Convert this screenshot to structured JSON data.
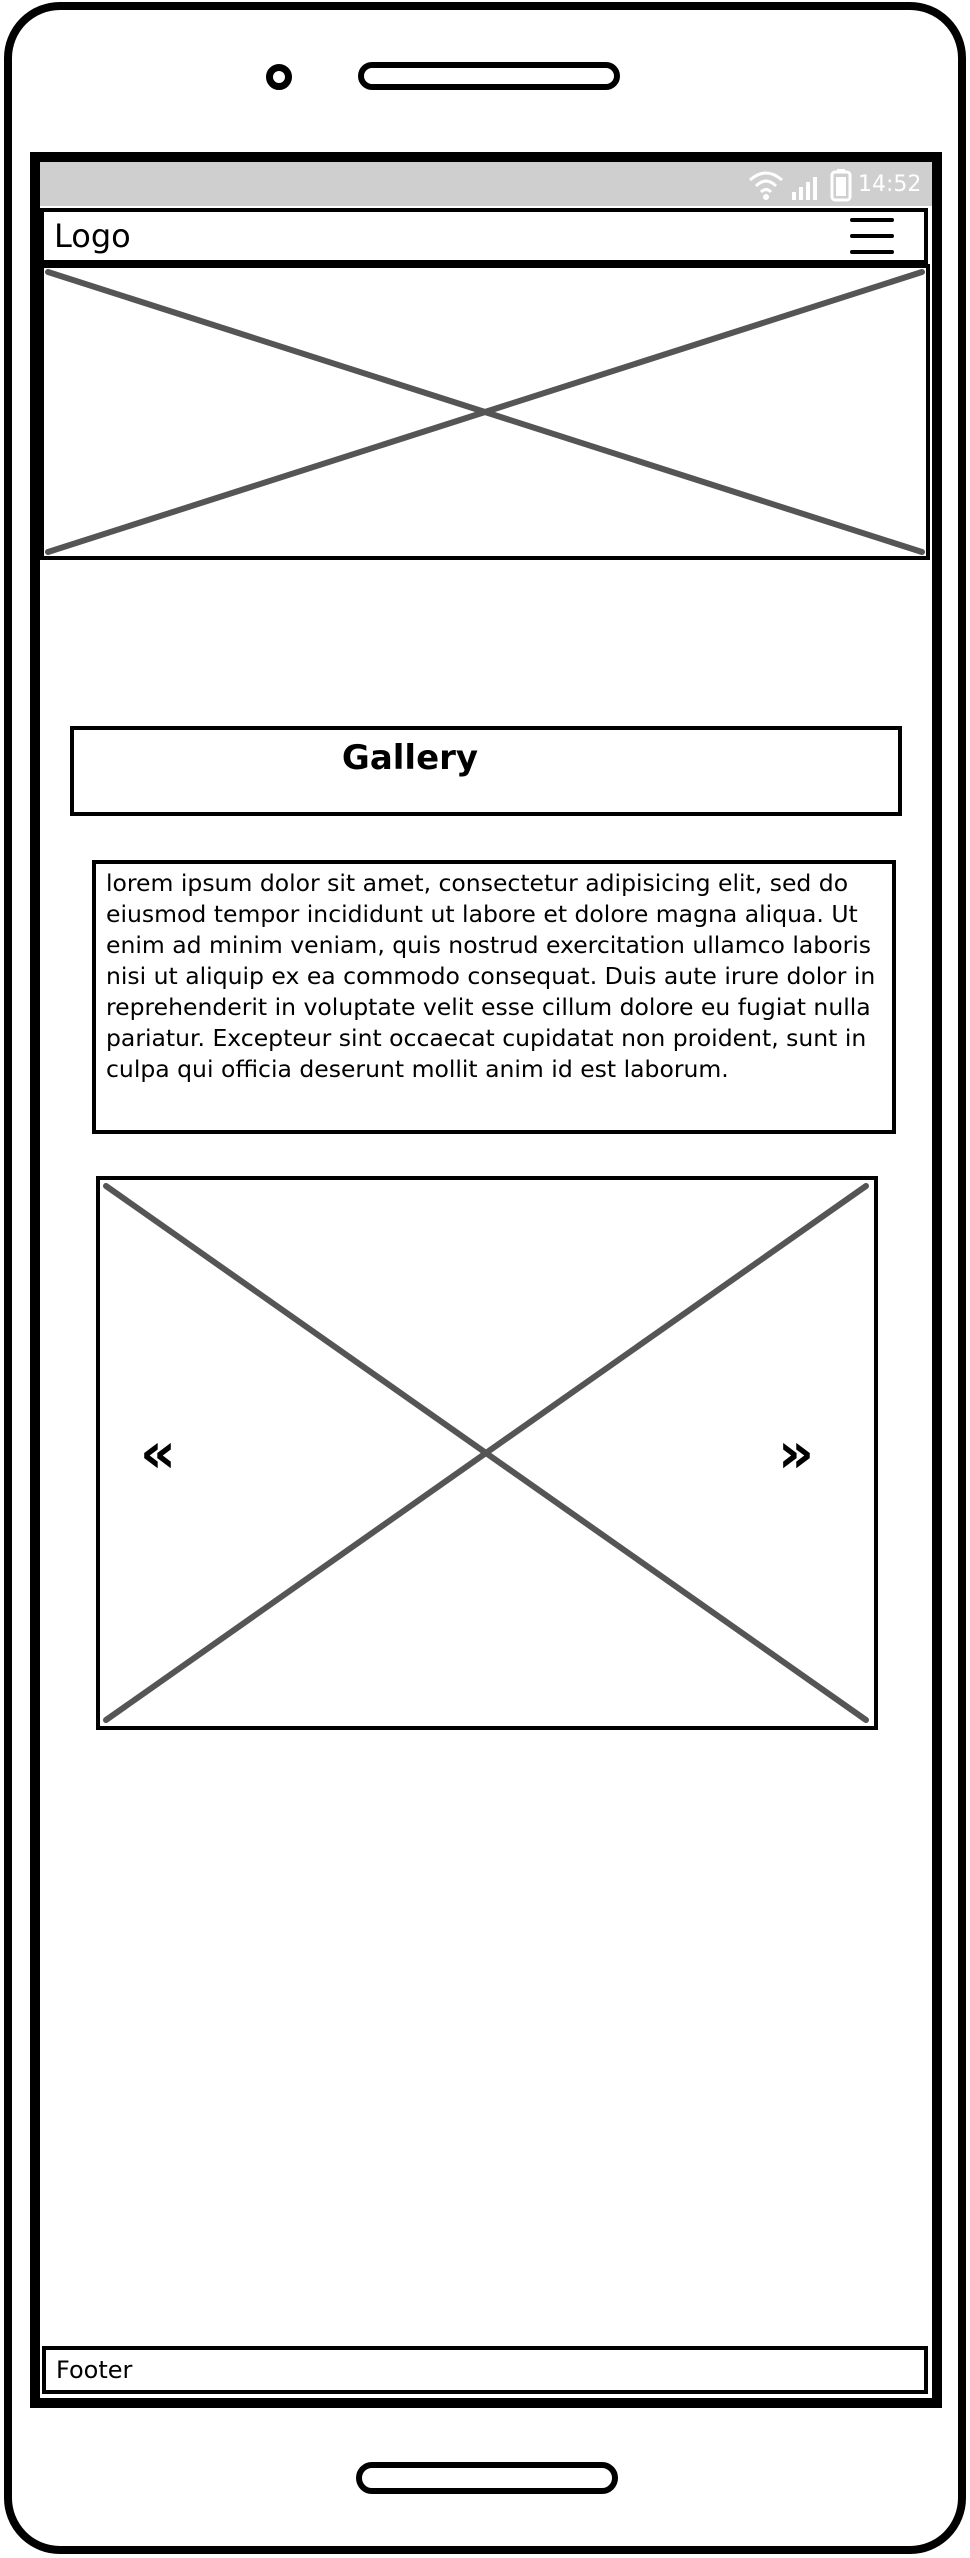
{
  "status_bar": {
    "time": "14:52",
    "icons": [
      "wifi-icon",
      "signal-icon",
      "battery-icon"
    ],
    "background": "#cfcfcf"
  },
  "header": {
    "logo_text": "Logo",
    "menu_icon": "hamburger-menu-icon"
  },
  "hero": {
    "placeholder": "image-placeholder"
  },
  "gallery": {
    "title": "Gallery",
    "description": "lorem ipsum dolor sit amet, consectetur adipisicing elit, sed do eiusmod tempor incididunt ut labore et dolore magna aliqua. Ut enim ad minim veniam, quis nostrud exercitation ullamco laboris nisi ut aliquip ex ea commodo consequat. Duis aute irure dolor in reprehenderit in voluptate velit esse cillum dolore eu fugiat nulla pariatur. Excepteur sint occaecat cupidatat non proident, sunt in culpa qui officia deserunt mollit anim id est laborum."
  },
  "carousel": {
    "prev_label": "«",
    "next_label": "»"
  },
  "footer": {
    "text": "Footer"
  }
}
